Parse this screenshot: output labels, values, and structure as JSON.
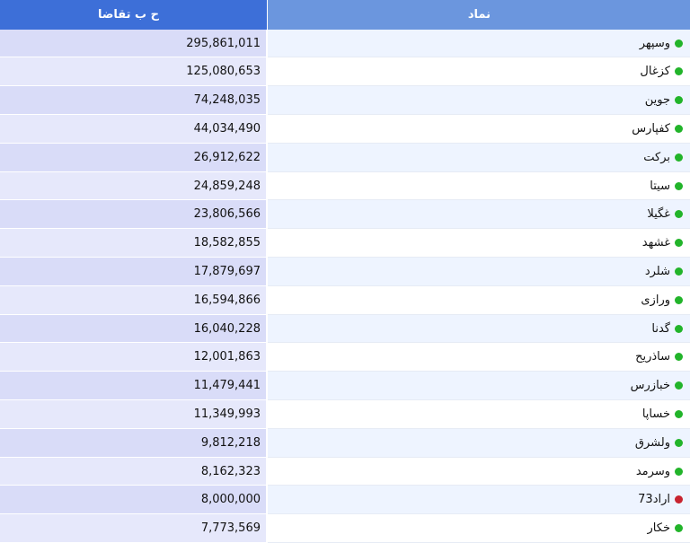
{
  "header": {
    "value_label": "ح ب تقاضا",
    "symbol_label": "نماد"
  },
  "colors": {
    "status_green": "#22b42a",
    "status_red": "#c8232f",
    "header_dark": "#3d6fd8",
    "header_light": "#6b96de"
  },
  "rows": [
    {
      "symbol": "وسپهر",
      "value": "295,861,011",
      "status": "green"
    },
    {
      "symbol": "کزغال",
      "value": "125,080,653",
      "status": "green"
    },
    {
      "symbol": "جوین",
      "value": "74,248,035",
      "status": "green"
    },
    {
      "symbol": "کفپارس",
      "value": "44,034,490",
      "status": "green"
    },
    {
      "symbol": "برکت",
      "value": "26,912,622",
      "status": "green"
    },
    {
      "symbol": "سیتا",
      "value": "24,859,248",
      "status": "green"
    },
    {
      "symbol": "غگیلا",
      "value": "23,806,566",
      "status": "green"
    },
    {
      "symbol": "غشهد",
      "value": "18,582,855",
      "status": "green"
    },
    {
      "symbol": "شلرد",
      "value": "17,879,697",
      "status": "green"
    },
    {
      "symbol": "ورازی",
      "value": "16,594,866",
      "status": "green"
    },
    {
      "symbol": "گدنا",
      "value": "16,040,228",
      "status": "green"
    },
    {
      "symbol": "ساذریح",
      "value": "12,001,863",
      "status": "green"
    },
    {
      "symbol": "خبازرس",
      "value": "11,479,441",
      "status": "green"
    },
    {
      "symbol": "خساپا",
      "value": "11,349,993",
      "status": "green"
    },
    {
      "symbol": "ولشرق",
      "value": "9,812,218",
      "status": "green"
    },
    {
      "symbol": "وسرمد",
      "value": "8,162,323",
      "status": "green"
    },
    {
      "symbol": "اراد73",
      "value": "8,000,000",
      "status": "red"
    },
    {
      "symbol": "خکار",
      "value": "7,773,569",
      "status": "green"
    }
  ]
}
